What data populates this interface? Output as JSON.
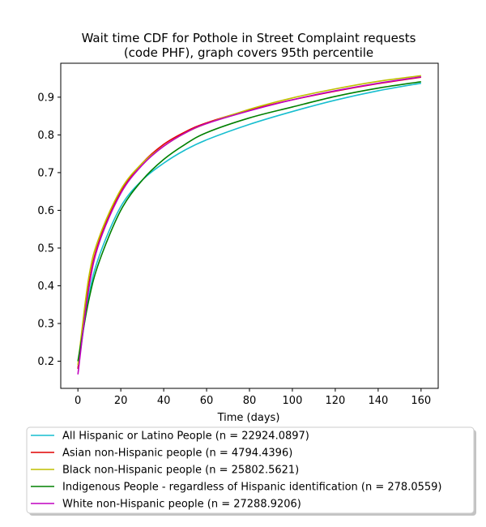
{
  "chart_data": {
    "type": "line",
    "title": "Wait time CDF for Pothole in Street Complaint  requests",
    "subtitle": "(code PHF), graph covers 95th percentile",
    "xlabel": "Time (days)",
    "ylabel": "",
    "xlim": [
      -8,
      168
    ],
    "ylim": [
      0.128,
      0.99
    ],
    "xticks": [
      0,
      20,
      40,
      60,
      80,
      100,
      120,
      140,
      160
    ],
    "yticks": [
      0.2,
      0.3,
      0.4,
      0.5,
      0.6,
      0.7,
      0.8,
      0.9
    ],
    "grid": false,
    "legend_position": "below",
    "x": [
      0,
      5,
      10,
      20,
      30,
      40,
      50,
      60,
      80,
      100,
      120,
      140,
      160
    ],
    "series": [
      {
        "name": "All Hispanic or Latino People (n = 22924.0897)",
        "color": "#17becf",
        "values": [
          0.18,
          0.37,
          0.48,
          0.61,
          0.68,
          0.725,
          0.76,
          0.787,
          0.828,
          0.862,
          0.892,
          0.917,
          0.937
        ]
      },
      {
        "name": "Asian non-Hispanic people (n = 4794.4396)",
        "color": "#e00000",
        "values": [
          0.18,
          0.4,
          0.52,
          0.65,
          0.725,
          0.775,
          0.808,
          0.832,
          0.866,
          0.893,
          0.916,
          0.936,
          0.953
        ]
      },
      {
        "name": "Black non-Hispanic people (n = 25802.5621)",
        "color": "#bfbf00",
        "values": [
          0.19,
          0.42,
          0.53,
          0.655,
          0.725,
          0.77,
          0.805,
          0.83,
          0.868,
          0.898,
          0.922,
          0.942,
          0.957
        ]
      },
      {
        "name": "Indigenous People - regardless of Hispanic identification (n = 278.0559)",
        "color": "#008000",
        "values": [
          0.2,
          0.36,
          0.465,
          0.6,
          0.68,
          0.735,
          0.775,
          0.806,
          0.845,
          0.874,
          0.902,
          0.924,
          0.941
        ]
      },
      {
        "name": "White non-Hispanic people (n = 27288.9206)",
        "color": "#c000c0",
        "values": [
          0.165,
          0.39,
          0.515,
          0.645,
          0.72,
          0.77,
          0.805,
          0.83,
          0.864,
          0.893,
          0.917,
          0.937,
          0.954
        ]
      }
    ]
  }
}
